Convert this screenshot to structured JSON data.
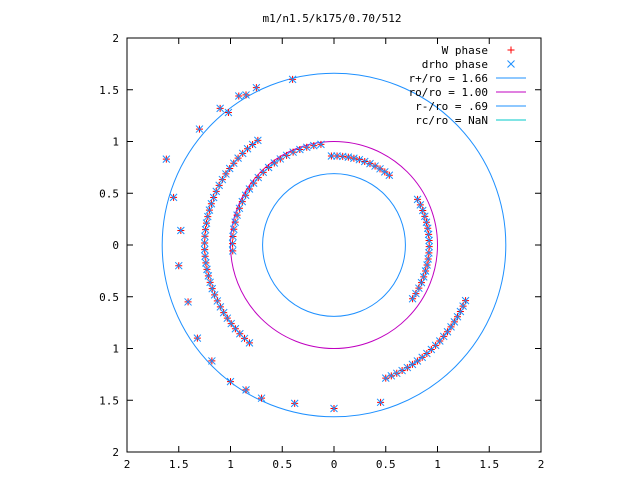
{
  "chart_data": {
    "type": "scatter",
    "title": "m1/n1.5/k175/0.70/512",
    "xlabel": "",
    "ylabel": "",
    "xlim": [
      -2,
      2
    ],
    "ylim": [
      -2,
      2
    ],
    "x_tick_labels": [
      "2",
      "1.5",
      "1",
      "0.5",
      "0",
      "0.5",
      "1",
      "1.5",
      "2"
    ],
    "y_tick_labels": [
      "2",
      "1.5",
      "1",
      "0.5",
      "0",
      "0.5",
      "1",
      "1.5",
      "2"
    ],
    "grid": false,
    "legend_position": "top-right",
    "series": [
      {
        "name": "W phase",
        "marker": "plus",
        "color": "#ff0000",
        "points": [
          [
            -1.62,
            0.83
          ],
          [
            -1.48,
            0.14
          ],
          [
            -1.5,
            -0.2
          ],
          [
            -1.41,
            -0.55
          ],
          [
            -1.32,
            -0.9
          ],
          [
            -1.18,
            -1.12
          ],
          [
            -1.0,
            -1.32
          ],
          [
            -0.85,
            -1.4
          ],
          [
            -0.7,
            -1.48
          ],
          [
            -0.38,
            -1.53
          ],
          [
            0.0,
            -1.58
          ],
          [
            0.45,
            -1.52
          ],
          [
            -1.55,
            0.46
          ],
          [
            -1.3,
            1.12
          ],
          [
            -1.1,
            1.32
          ],
          [
            -0.92,
            1.44
          ],
          [
            -0.85,
            1.45
          ],
          [
            -0.75,
            1.52
          ],
          [
            -0.4,
            1.6
          ],
          [
            -1.02,
            1.28
          ]
        ]
      },
      {
        "name": "drho phase",
        "marker": "cross",
        "color": "#1e90ff",
        "points": [
          [
            -1.62,
            0.83
          ],
          [
            -1.48,
            0.14
          ],
          [
            -1.5,
            -0.2
          ],
          [
            -1.41,
            -0.55
          ],
          [
            -1.32,
            -0.9
          ],
          [
            -1.18,
            -1.12
          ],
          [
            -1.0,
            -1.32
          ],
          [
            -0.85,
            -1.4
          ],
          [
            -0.7,
            -1.48
          ],
          [
            -0.38,
            -1.53
          ],
          [
            0.0,
            -1.58
          ],
          [
            0.45,
            -1.52
          ],
          [
            -1.55,
            0.46
          ],
          [
            -1.3,
            1.12
          ],
          [
            -1.1,
            1.32
          ],
          [
            -0.92,
            1.44
          ],
          [
            -0.85,
            1.45
          ],
          [
            -0.75,
            1.52
          ],
          [
            -0.4,
            1.6
          ],
          [
            -1.02,
            1.28
          ]
        ]
      },
      {
        "name": "r+/ro = 1.66",
        "marker": "line",
        "color": "#1e90ff",
        "radius": 1.66
      },
      {
        "name": "ro/ro = 1.00",
        "marker": "line",
        "color": "#c000c0",
        "radius": 1.0
      },
      {
        "name": "r-/ro = .69",
        "marker": "line",
        "color": "#1e90ff",
        "radius": 0.69
      },
      {
        "name": "rc/ro = NaN",
        "marker": "line",
        "color": "#00c8c8",
        "radius": null
      }
    ]
  }
}
